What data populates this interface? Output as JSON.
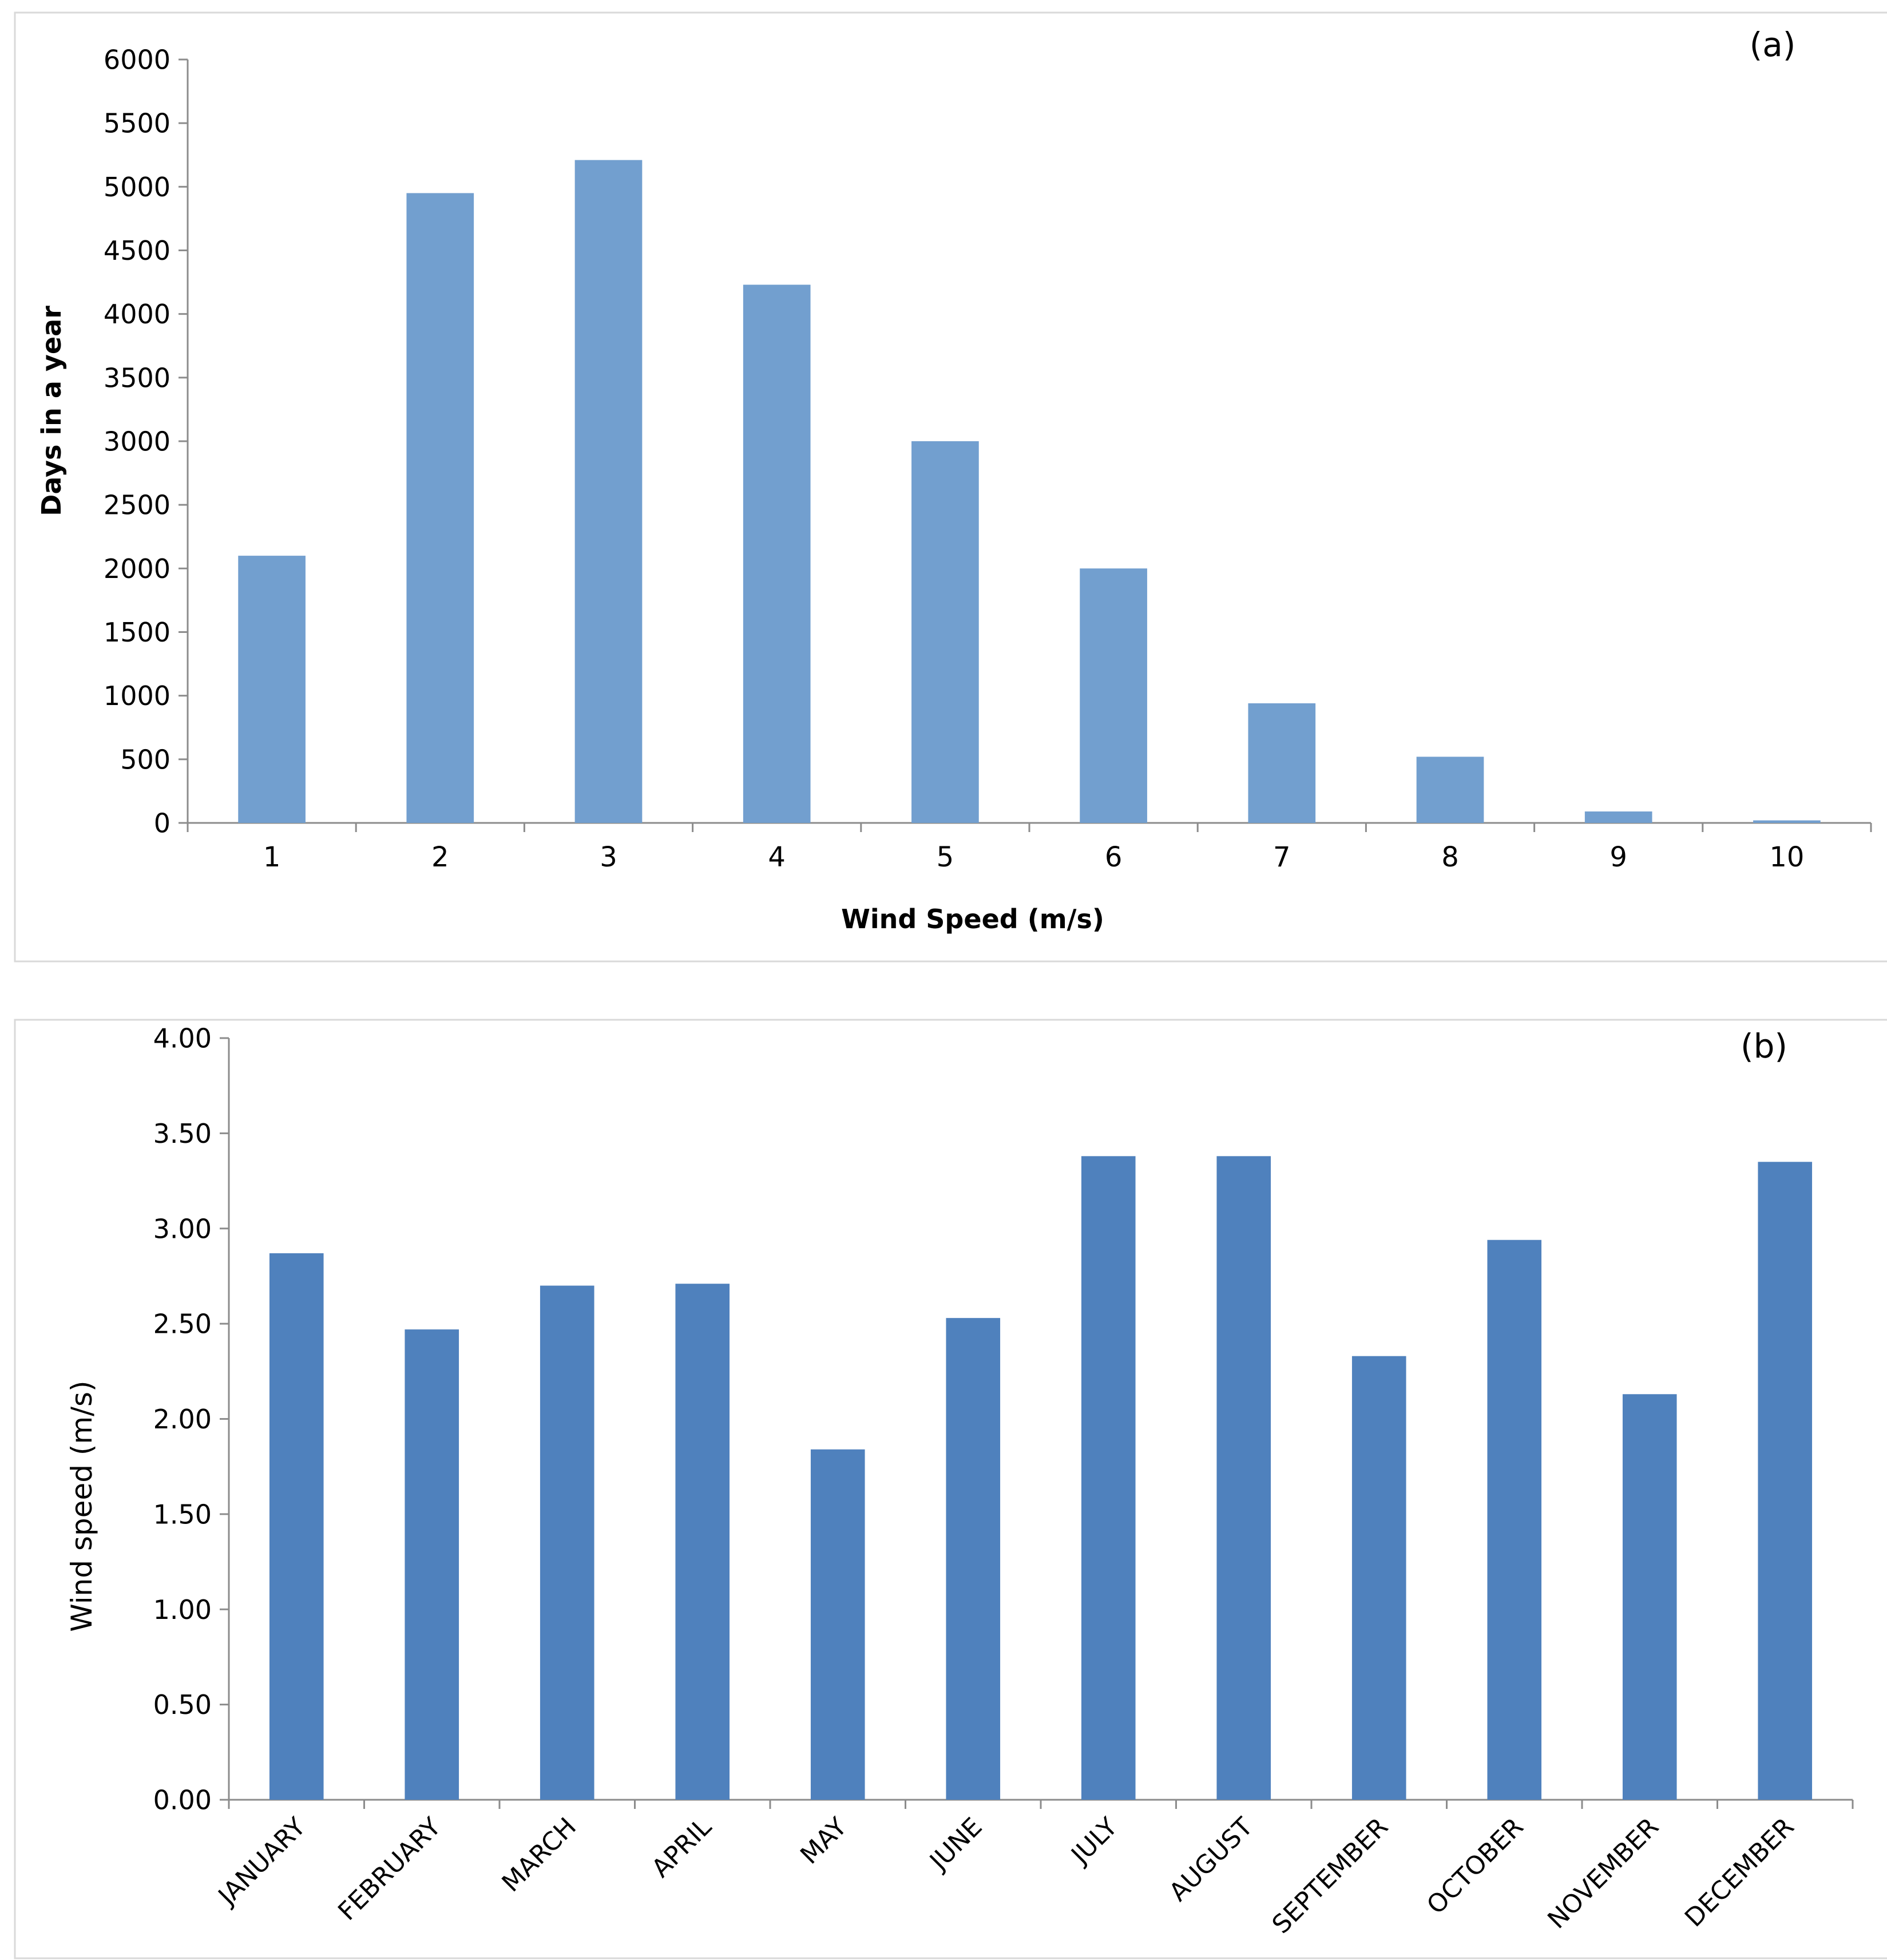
{
  "chart_data": [
    {
      "panel": "(a)",
      "type": "bar",
      "title": "",
      "xlabel": "Wind Speed (m/s)",
      "ylabel": "Days in a year",
      "categories": [
        "1",
        "2",
        "3",
        "4",
        "5",
        "6",
        "7",
        "8",
        "9",
        "10"
      ],
      "values": [
        2100,
        4950,
        5210,
        4230,
        3000,
        2000,
        940,
        520,
        90,
        20
      ],
      "ylim": [
        0,
        6000
      ],
      "yticks": [
        "0",
        "500",
        "1000",
        "1500",
        "2000",
        "2500",
        "3000",
        "3500",
        "4000",
        "4500",
        "5000",
        "5500",
        "6000"
      ],
      "bar_color": "#729fcf",
      "grid": false,
      "legend": "none"
    },
    {
      "panel": "(b)",
      "type": "bar",
      "title": "",
      "xlabel": "",
      "ylabel": "Wind speed (m/s)",
      "categories": [
        "JANUARY",
        "FEBRUARY",
        "MARCH",
        "APRIL",
        "MAY",
        "JUNE",
        "JULY",
        "AUGUST",
        "SEPTEMBER",
        "OCTOBER",
        "NOVEMBER",
        "DECEMBER"
      ],
      "values": [
        2.87,
        2.47,
        2.7,
        2.71,
        1.84,
        2.53,
        3.38,
        3.38,
        2.33,
        2.94,
        2.13,
        3.35
      ],
      "ylim": [
        0,
        4
      ],
      "yticks": [
        "0.00",
        "0.50",
        "1.00",
        "1.50",
        "2.00",
        "2.50",
        "3.00",
        "3.50",
        "4.00"
      ],
      "bar_color": "#4f81bd",
      "grid": false,
      "legend": "none"
    }
  ]
}
